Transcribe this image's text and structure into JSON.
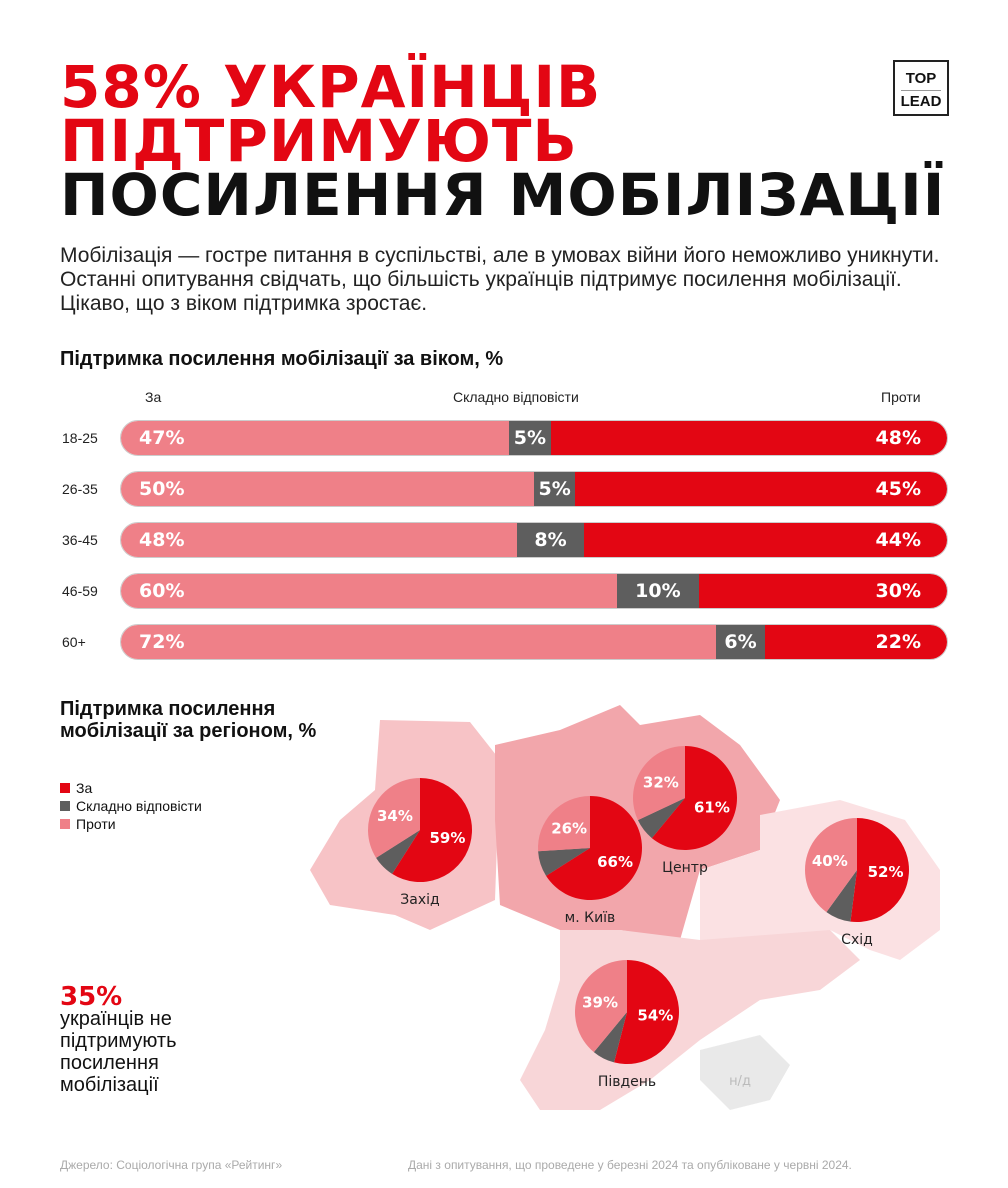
{
  "title": {
    "line1": "58% УКРАЇНЦІВ",
    "line2": "ПІДТРИМУЮТЬ",
    "line3": "ПОСИЛЕННЯ МОБІЛІЗАЦІЇ"
  },
  "logo": {
    "top": "TOP",
    "bottom": "LEAD"
  },
  "intro": "Мобілізація — гостре питання в суспільстві, але в умовах війни його неможливо уникнути. Останні опитування свідчать, що більшість українців підтримує посилення мобілізації. Цікаво, що з віком підтримка зростає.",
  "colors": {
    "za": "#e30613",
    "skladno": "#5e5e5e",
    "proty": "#ef8088"
  },
  "chart_data": [
    {
      "type": "bar",
      "stacked": true,
      "orientation": "horizontal",
      "title": "Підтримка посилення мобілізації за віком, %",
      "column_labels": {
        "left": "За",
        "middle": "Складно відповісти",
        "right": "Проти"
      },
      "categories": [
        "18-25",
        "26-35",
        "36-45",
        "46-59",
        "60+"
      ],
      "series": [
        {
          "name": "За",
          "values": [
            47,
            50,
            48,
            60,
            72
          ]
        },
        {
          "name": "Складно відповісти",
          "values": [
            5,
            5,
            8,
            10,
            6
          ]
        },
        {
          "name": "Проти",
          "values": [
            48,
            45,
            44,
            30,
            22
          ]
        }
      ]
    },
    {
      "type": "pie",
      "title": "Підтримка посилення мобілізації за регіоном, %",
      "legend": [
        "За",
        "Складно відповісти",
        "Проти"
      ],
      "regions": [
        {
          "name": "Захід",
          "za": 59,
          "skladno": 7,
          "proty": 34
        },
        {
          "name": "м. Київ",
          "za": 66,
          "skladno": 8,
          "proty": 26
        },
        {
          "name": "Центр",
          "za": 61,
          "skladno": 7,
          "proty": 32
        },
        {
          "name": "Схід",
          "za": 52,
          "skladno": 8,
          "proty": 40
        },
        {
          "name": "Південь",
          "za": 54,
          "skladno": 7,
          "proty": 39
        }
      ],
      "no_data_label": "н/д"
    }
  ],
  "callout": {
    "value": "35%",
    "text": "українців не підтримують посилення мобілізації"
  },
  "footer": {
    "source": "Джерело: Соціологічна група «Рейтинг»",
    "note": "Дані з опитування, що проведене у березні 2024 та опубліковане у червні 2024."
  }
}
